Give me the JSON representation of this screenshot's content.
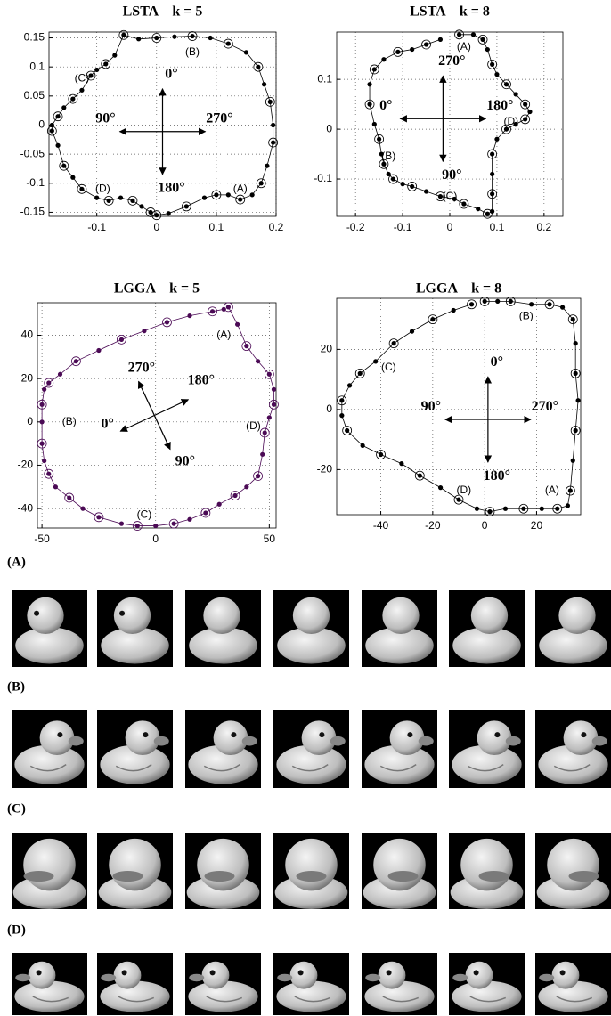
{
  "chart_data": [
    {
      "type": "scatter",
      "title": "LSTA    k = 5",
      "color": "#000000",
      "line": true,
      "grid": true,
      "x": [
        0,
        0.02,
        0.05,
        0.08,
        0.1,
        0.12,
        0.14,
        0.16,
        0.175,
        0.185,
        0.195,
        0.195,
        0.19,
        0.18,
        0.17,
        0.15,
        0.12,
        0.09,
        0.06,
        0.03,
        0.0,
        -0.03,
        -0.055,
        -0.07,
        -0.085,
        -0.1,
        -0.11,
        -0.125,
        -0.14,
        -0.155,
        -0.165,
        -0.175,
        -0.175,
        -0.165,
        -0.155,
        -0.14,
        -0.125,
        -0.1,
        -0.08,
        -0.06,
        -0.04,
        -0.025,
        -0.01
      ],
      "values": [
        -0.155,
        -0.152,
        -0.14,
        -0.125,
        -0.12,
        -0.12,
        -0.128,
        -0.12,
        -0.1,
        -0.07,
        -0.03,
        0.0,
        0.04,
        0.07,
        0.1,
        0.125,
        0.14,
        0.15,
        0.153,
        0.152,
        0.15,
        0.148,
        0.155,
        0.12,
        0.105,
        0.095,
        0.085,
        0.06,
        0.045,
        0.03,
        0.015,
        0.0,
        -0.01,
        -0.035,
        -0.07,
        -0.09,
        -0.11,
        -0.125,
        -0.13,
        -0.125,
        -0.13,
        -0.14,
        -0.15
      ],
      "xlim": [
        -0.18,
        0.2
      ],
      "xticks": [
        -0.1,
        0,
        0.1,
        0.2
      ],
      "ylim": [
        -0.157,
        0.16
      ],
      "yticks": [
        -0.15,
        -0.1,
        -0.05,
        0,
        0.05,
        0.1,
        0.15
      ],
      "annotations": [
        "(A)",
        "(B)",
        "(C)",
        "(D)"
      ],
      "direction_labels": [
        "0°",
        "270°",
        "180°",
        "90°"
      ]
    },
    {
      "type": "scatter",
      "title": "LSTA    k = 8",
      "color": "#000000",
      "line": true,
      "grid": true,
      "x": [
        0.02,
        0.05,
        0.07,
        0.08,
        0.09,
        0.1,
        0.12,
        0.14,
        0.16,
        0.17,
        0.16,
        0.14,
        0.12,
        0.1,
        0.09,
        0.09,
        0.09,
        0.09,
        0.08,
        0.06,
        0.03,
        0.01,
        -0.02,
        -0.05,
        -0.08,
        -0.1,
        -0.12,
        -0.13,
        -0.14,
        -0.145,
        -0.15,
        -0.16,
        -0.17,
        -0.17,
        -0.16,
        -0.14,
        -0.11,
        -0.08,
        -0.05,
        -0.02
      ],
      "values": [
        0.19,
        0.19,
        0.18,
        0.16,
        0.13,
        0.11,
        0.09,
        0.07,
        0.05,
        0.035,
        0.02,
        0.01,
        0.0,
        -0.02,
        -0.05,
        -0.09,
        -0.13,
        -0.165,
        -0.17,
        -0.16,
        -0.15,
        -0.14,
        -0.135,
        -0.125,
        -0.115,
        -0.11,
        -0.1,
        -0.09,
        -0.07,
        -0.05,
        -0.02,
        0.01,
        0.05,
        0.09,
        0.12,
        0.14,
        0.155,
        0.16,
        0.17,
        0.18
      ],
      "xlim": [
        -0.24,
        0.24
      ],
      "xticks": [
        -0.2,
        -0.1,
        0,
        0.1,
        0.2
      ],
      "ylim": [
        -0.175,
        0.195
      ],
      "yticks": [
        -0.1,
        0,
        0.1
      ],
      "annotations": [
        "(A)",
        "(B)",
        "(C)",
        "(D)"
      ],
      "direction_labels": [
        "270°",
        "180°",
        "90°",
        "0°"
      ]
    },
    {
      "type": "scatter",
      "title": "LGGA    k = 5",
      "color": "#4b0a55",
      "line": true,
      "grid": true,
      "x": [
        32,
        36,
        40,
        45,
        50,
        52,
        52,
        50,
        48,
        47,
        45,
        40,
        35,
        28,
        22,
        15,
        8,
        0,
        -8,
        -15,
        -25,
        -32,
        -38,
        -44,
        -47,
        -49,
        -50,
        -50,
        -50,
        -49,
        -47,
        -42,
        -35,
        -25,
        -15,
        -5,
        5,
        15,
        25,
        30
      ],
      "values": [
        53,
        45,
        35,
        28,
        22,
        15,
        8,
        2,
        -5,
        -15,
        -25,
        -30,
        -34,
        -38,
        -42,
        -45,
        -47,
        -48,
        -48,
        -47,
        -44,
        -40,
        -35,
        -30,
        -24,
        -18,
        -10,
        0,
        8,
        15,
        18,
        22,
        28,
        33,
        38,
        42,
        46,
        49,
        51,
        52
      ],
      "xlim": [
        -52,
        53
      ],
      "xticks": [
        -50,
        0,
        50
      ],
      "ylim": [
        -49,
        55
      ],
      "yticks": [
        -40,
        -20,
        0,
        20,
        40
      ],
      "annotations": [
        "(A)",
        "(B)",
        "(C)",
        "(D)"
      ],
      "direction_labels": [
        "270°",
        "180°",
        "90°",
        "0°"
      ]
    },
    {
      "type": "scatter",
      "title": "LGGA    k = 8",
      "color": "#000000",
      "line": true,
      "grid": true,
      "x": [
        0,
        5,
        10,
        18,
        25,
        30,
        34,
        35,
        35,
        36,
        35,
        34,
        33,
        32,
        28,
        22,
        15,
        8,
        2,
        -3,
        -10,
        -17,
        -25,
        -32,
        -40,
        -47,
        -53,
        -55,
        -55,
        -52,
        -48,
        -42,
        -35,
        -28,
        -20,
        -12,
        -5
      ],
      "values": [
        36,
        36,
        36,
        35,
        35,
        34,
        30,
        22,
        12,
        3,
        -7,
        -17,
        -27,
        -32,
        -33,
        -33,
        -33,
        -33,
        -34,
        -33,
        -30,
        -26,
        -22,
        -18,
        -15,
        -12,
        -7,
        -2,
        3,
        8,
        12,
        16,
        22,
        26,
        30,
        33,
        35
      ],
      "xlim": [
        -57,
        37
      ],
      "xticks": [
        -40,
        -20,
        0,
        20
      ],
      "ylim": [
        -35,
        37
      ],
      "yticks": [
        -20,
        0,
        20
      ],
      "annotations": [
        "(A)",
        "(B)",
        "(C)",
        "(D)"
      ],
      "direction_labels": [
        "0°",
        "270°",
        "180°",
        "90°"
      ]
    }
  ],
  "image_row_labels": [
    "(A)",
    "(B)",
    "(C)",
    "(D)"
  ]
}
